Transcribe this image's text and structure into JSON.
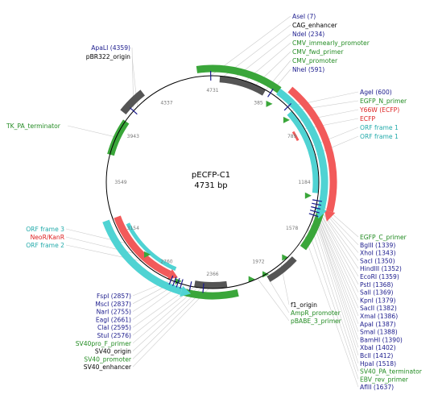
{
  "plasmid": {
    "name": "pECFP-C1",
    "size": "4731 bp",
    "length": 4731
  },
  "colors": {
    "gray": "#555555",
    "green": "#3aa63a",
    "cyan": "#4fd3d3",
    "red": "#f25a5a",
    "blue": "#1a1a8c",
    "darkgreen": "#228b22",
    "redtext": "#dd2222",
    "cyantext": "#22aaaa",
    "black": "#000000"
  },
  "ticks": [
    "4731",
    "385",
    "789",
    "1184",
    "1578",
    "1972",
    "2366",
    "2760",
    "3154",
    "3549",
    "3943",
    "4337"
  ],
  "labels_top": [
    {
      "text": "AseI (7)",
      "color": "blue"
    },
    {
      "text": "CAG_enhancer",
      "color": "black"
    },
    {
      "text": "NdeI (234)",
      "color": "blue"
    },
    {
      "text": "CMV_immearly_promoter",
      "color": "darkgreen"
    },
    {
      "text": "CMV_fwd_primer",
      "color": "darkgreen"
    },
    {
      "text": "CMV_promoter",
      "color": "darkgreen"
    },
    {
      "text": "NheI (591)",
      "color": "blue"
    }
  ],
  "labels_upper_right": [
    {
      "text": "AgeI (600)",
      "color": "blue"
    },
    {
      "text": "EGFP_N_primer",
      "color": "darkgreen"
    },
    {
      "text": "Y66W (ECFP)",
      "color": "redtext"
    },
    {
      "text": "ECFP",
      "color": "redtext"
    },
    {
      "text": "ORF frame 1",
      "color": "cyantext"
    },
    {
      "text": "ORF frame 1",
      "color": "cyantext"
    }
  ],
  "labels_lower_right": [
    {
      "text": "EGFP_C_primer",
      "color": "darkgreen"
    },
    {
      "text": "BglII (1339)",
      "color": "blue"
    },
    {
      "text": "XhoI (1343)",
      "color": "blue"
    },
    {
      "text": "SacI (1350)",
      "color": "blue"
    },
    {
      "text": "HindIII (1352)",
      "color": "blue"
    },
    {
      "text": "EcoRI (1359)",
      "color": "blue"
    },
    {
      "text": "PstI (1368)",
      "color": "blue"
    },
    {
      "text": "SalI (1369)",
      "color": "blue"
    },
    {
      "text": "KpnI (1379)",
      "color": "blue"
    },
    {
      "text": "SacII (1382)",
      "color": "blue"
    },
    {
      "text": "XmaI (1386)",
      "color": "blue"
    },
    {
      "text": "ApaI (1387)",
      "color": "blue"
    },
    {
      "text": "SmaI (1388)",
      "color": "blue"
    },
    {
      "text": "BamHI (1390)",
      "color": "blue"
    },
    {
      "text": "XbaI (1402)",
      "color": "blue"
    },
    {
      "text": "BclI (1412)",
      "color": "blue"
    },
    {
      "text": "HpaI (1518)",
      "color": "blue"
    },
    {
      "text": "SV40_PA_terminator",
      "color": "darkgreen"
    },
    {
      "text": "EBV_rev_primer",
      "color": "darkgreen"
    },
    {
      "text": "AflII (1637)",
      "color": "blue"
    }
  ],
  "labels_bottom_mid": [
    {
      "text": "f1_origin",
      "color": "black"
    },
    {
      "text": "AmpR_promoter",
      "color": "darkgreen"
    },
    {
      "text": "pBABE_3_primer",
      "color": "darkgreen"
    }
  ],
  "labels_bottom_left": [
    {
      "text": "FspI (2857)",
      "color": "blue"
    },
    {
      "text": "MscI (2837)",
      "color": "blue"
    },
    {
      "text": "NarI (2755)",
      "color": "blue"
    },
    {
      "text": "EagI (2661)",
      "color": "blue"
    },
    {
      "text": "ClaI (2595)",
      "color": "blue"
    },
    {
      "text": "StuI (2576)",
      "color": "blue"
    },
    {
      "text": "SV40pro_F_primer",
      "color": "darkgreen"
    },
    {
      "text": "SV40_origin",
      "color": "black"
    },
    {
      "text": "SV40_promoter",
      "color": "darkgreen"
    },
    {
      "text": "SV40_enhancer",
      "color": "black"
    }
  ],
  "labels_left": [
    {
      "text": "ORF frame 3",
      "color": "cyantext"
    },
    {
      "text": "NeoR/KanR",
      "color": "redtext"
    },
    {
      "text": "ORF frame 2",
      "color": "cyantext"
    }
  ],
  "labels_upper_left": [
    {
      "text": "ApaLI (4359)",
      "color": "blue"
    },
    {
      "text": "pBR322_origin",
      "color": "black"
    }
  ],
  "label_tk": {
    "text": "TK_PA_terminator",
    "color": "darkgreen"
  }
}
